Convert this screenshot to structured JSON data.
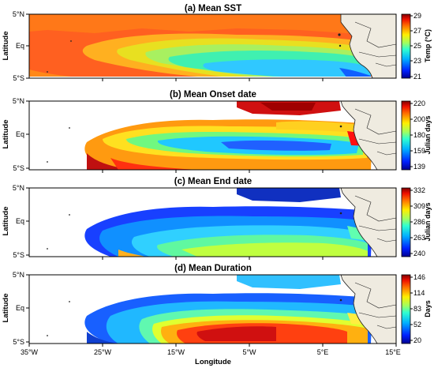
{
  "figure": {
    "x_axis_label": "Longitude",
    "y_axis_label": "Latitude",
    "x_ticks": [
      "35°W",
      "25°W",
      "15°W",
      "5°W",
      "5°E",
      "15°E"
    ],
    "y_ticks": [
      "5°N",
      "Eq",
      "5°S"
    ],
    "land_color": "#efebe0",
    "ocean_missing_color": "#ffffff"
  },
  "panels": [
    {
      "title": "(a) Mean SST",
      "colorbar_label": "Temp (°C)",
      "colorbar_ticks": [
        "29",
        "27",
        "25",
        "23",
        "21"
      ],
      "colorbar_range": [
        21,
        29
      ],
      "palette": "jet"
    },
    {
      "title": "(b) Mean Onset date",
      "colorbar_label": "Julian days",
      "colorbar_ticks": [
        "220",
        "200",
        "180",
        "159",
        "139"
      ],
      "colorbar_range": [
        139,
        220
      ],
      "palette": "jet"
    },
    {
      "title": "(c) Mean End date",
      "colorbar_label": "Julian days",
      "colorbar_ticks": [
        "332",
        "309",
        "286",
        "263",
        "240"
      ],
      "colorbar_range": [
        240,
        332
      ],
      "palette": "jet"
    },
    {
      "title": "(d) Mean Duration",
      "colorbar_label": "Days",
      "colorbar_ticks": [
        "146",
        "114",
        "83",
        "52",
        "20"
      ],
      "colorbar_range": [
        20,
        146
      ],
      "palette": "jet"
    }
  ]
}
